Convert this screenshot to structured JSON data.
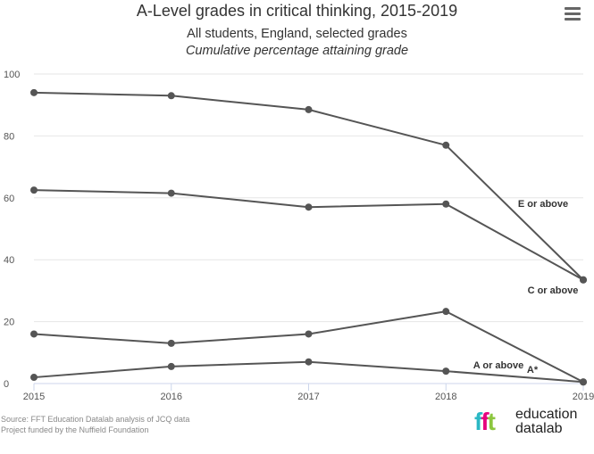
{
  "header": {
    "title": "A-Level grades in critical thinking, 2015-2019",
    "subtitle": "All students, England, selected grades",
    "subtitle2": "Cumulative percentage attaining grade",
    "menu_icon": "hamburger-menu-icon"
  },
  "chart_data": {
    "type": "line",
    "title": "A-Level grades in critical thinking, 2015-2019",
    "subtitle": "All students, England, selected grades",
    "x": [
      "2015",
      "2016",
      "2017",
      "2018",
      "2019"
    ],
    "ylim": [
      0,
      100
    ],
    "yticks": [
      0,
      20,
      40,
      60,
      80,
      100
    ],
    "grid": true,
    "series": [
      {
        "name": "E or above",
        "values": [
          94,
          93,
          88.5,
          77,
          33.5
        ]
      },
      {
        "name": "C or above",
        "values": [
          62.5,
          61.5,
          57,
          58,
          33.5
        ]
      },
      {
        "name": "A or above",
        "values": [
          16,
          13,
          16,
          23.3,
          0.5
        ]
      },
      {
        "name": "A*",
        "values": [
          2,
          5.5,
          7,
          4,
          0.5
        ]
      }
    ],
    "line_color": "#555555"
  },
  "footer": {
    "source": "Source: FFT Education Datalab analysis of JCQ data",
    "funding": "Project funded by the Nuffield Foundation",
    "logo_mark": "fft",
    "logo_line1": "education",
    "logo_line2": "datalab",
    "logo_colors": [
      "#2bb8c4",
      "#e6007e",
      "#8cc63f"
    ]
  }
}
